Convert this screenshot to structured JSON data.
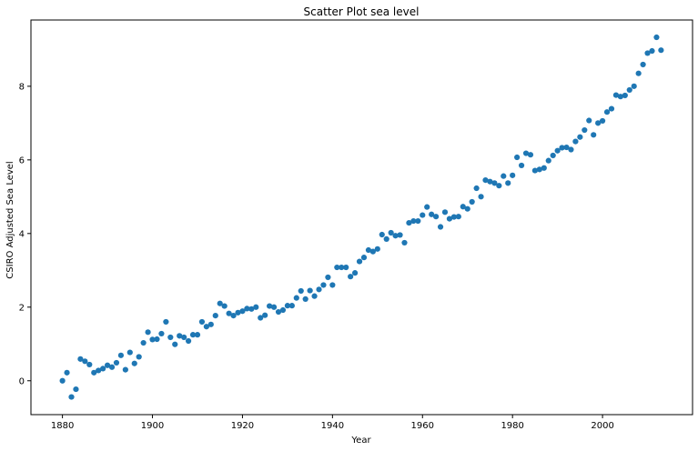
{
  "chart_data": {
    "type": "scatter",
    "title": "Scatter Plot sea level",
    "xlabel": "Year",
    "ylabel": "CSIRO Adjusted Sea Level",
    "xlim": [
      1873,
      2020
    ],
    "ylim": [
      -0.92,
      9.8
    ],
    "xticks": [
      1880,
      1900,
      1920,
      1940,
      1960,
      1980,
      2000
    ],
    "yticks": [
      0,
      2,
      4,
      6,
      8
    ],
    "grid": false,
    "marker_color": "#1f77b4",
    "x": [
      1880,
      1881,
      1882,
      1883,
      1884,
      1885,
      1886,
      1887,
      1888,
      1889,
      1890,
      1891,
      1892,
      1893,
      1894,
      1895,
      1896,
      1897,
      1898,
      1899,
      1900,
      1901,
      1902,
      1903,
      1904,
      1905,
      1906,
      1907,
      1908,
      1909,
      1910,
      1911,
      1912,
      1913,
      1914,
      1915,
      1916,
      1917,
      1918,
      1919,
      1920,
      1921,
      1922,
      1923,
      1924,
      1925,
      1926,
      1927,
      1928,
      1929,
      1930,
      1931,
      1932,
      1933,
      1934,
      1935,
      1936,
      1937,
      1938,
      1939,
      1940,
      1941,
      1942,
      1943,
      1944,
      1945,
      1946,
      1947,
      1948,
      1949,
      1950,
      1951,
      1952,
      1953,
      1954,
      1955,
      1956,
      1957,
      1958,
      1959,
      1960,
      1961,
      1962,
      1963,
      1964,
      1965,
      1966,
      1967,
      1968,
      1969,
      1970,
      1971,
      1972,
      1973,
      1974,
      1975,
      1976,
      1977,
      1978,
      1979,
      1980,
      1981,
      1982,
      1983,
      1984,
      1985,
      1986,
      1987,
      1988,
      1989,
      1990,
      1991,
      1992,
      1993,
      1994,
      1995,
      1996,
      1997,
      1998,
      1999,
      2000,
      2001,
      2002,
      2003,
      2004,
      2005,
      2006,
      2007,
      2008,
      2009,
      2010,
      2011,
      2012,
      2013
    ],
    "y": [
      0.0,
      0.22,
      -0.44,
      -0.23,
      0.59,
      0.53,
      0.44,
      0.22,
      0.28,
      0.33,
      0.42,
      0.37,
      0.49,
      0.69,
      0.3,
      0.77,
      0.47,
      0.65,
      1.03,
      1.32,
      1.12,
      1.13,
      1.28,
      1.6,
      1.18,
      0.99,
      1.22,
      1.18,
      1.08,
      1.25,
      1.25,
      1.6,
      1.47,
      1.53,
      1.77,
      2.1,
      2.03,
      1.83,
      1.77,
      1.85,
      1.89,
      1.96,
      1.95,
      2.0,
      1.71,
      1.78,
      2.03,
      2.0,
      1.87,
      1.92,
      2.04,
      2.04,
      2.25,
      2.44,
      2.22,
      2.45,
      2.3,
      2.48,
      2.6,
      2.81,
      2.6,
      3.08,
      3.08,
      3.08,
      2.83,
      2.93,
      3.24,
      3.35,
      3.55,
      3.51,
      3.58,
      3.97,
      3.85,
      4.02,
      3.94,
      3.96,
      3.75,
      4.29,
      4.34,
      4.34,
      4.5,
      4.72,
      4.52,
      4.46,
      4.18,
      4.58,
      4.4,
      4.45,
      4.46,
      4.73,
      4.67,
      4.86,
      5.23,
      5.0,
      5.45,
      5.41,
      5.37,
      5.3,
      5.56,
      5.37,
      5.58,
      6.07,
      5.85,
      6.18,
      6.14,
      5.71,
      5.74,
      5.78,
      5.98,
      6.12,
      6.25,
      6.33,
      6.34,
      6.28,
      6.5,
      6.62,
      6.81,
      7.07,
      6.68,
      7.0,
      7.06,
      7.3,
      7.39,
      7.76,
      7.72,
      7.75,
      7.9,
      8.0,
      8.35,
      8.59,
      8.9,
      8.96,
      9.33,
      8.98
    ]
  }
}
